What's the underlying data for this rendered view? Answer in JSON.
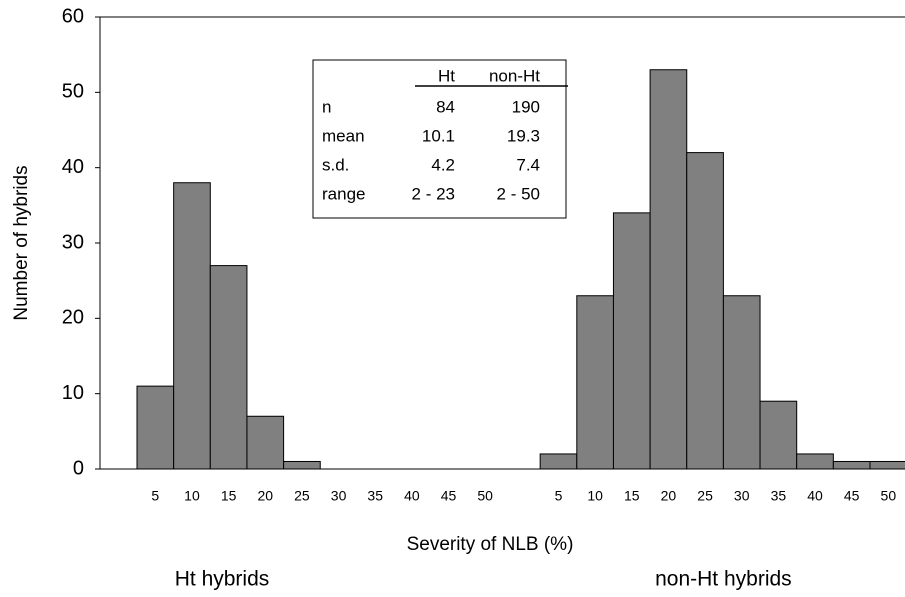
{
  "chart_data": {
    "type": "bar",
    "ylabel": "Number of hybrids",
    "xlabel": "Severity of NLB (%)",
    "ylim": [
      0,
      60
    ],
    "yticks": [
      0,
      10,
      20,
      30,
      40,
      50,
      60
    ],
    "color": "#808080",
    "groups": [
      {
        "name": "Ht hybrids",
        "categories": [
          "5",
          "10",
          "15",
          "20",
          "25",
          "30",
          "35",
          "40",
          "45",
          "50"
        ],
        "values": [
          11,
          38,
          27,
          7,
          1,
          0,
          0,
          0,
          0,
          0
        ]
      },
      {
        "name": "non-Ht hybrids",
        "categories": [
          "5",
          "10",
          "15",
          "20",
          "25",
          "30",
          "35",
          "40",
          "45",
          "50"
        ],
        "values": [
          2,
          23,
          34,
          53,
          42,
          23,
          9,
          2,
          1,
          1
        ]
      }
    ],
    "table": {
      "columns": [
        "Ht",
        "non-Ht"
      ],
      "rows": [
        {
          "label": "n",
          "cells": [
            84,
            190
          ]
        },
        {
          "label": "mean",
          "cells": [
            10.1,
            19.3
          ]
        },
        {
          "label": "s.d.",
          "cells": [
            4.2,
            7.4
          ]
        },
        {
          "label": "range",
          "cells": [
            "2 - 23",
            "2 - 50"
          ]
        }
      ]
    }
  }
}
